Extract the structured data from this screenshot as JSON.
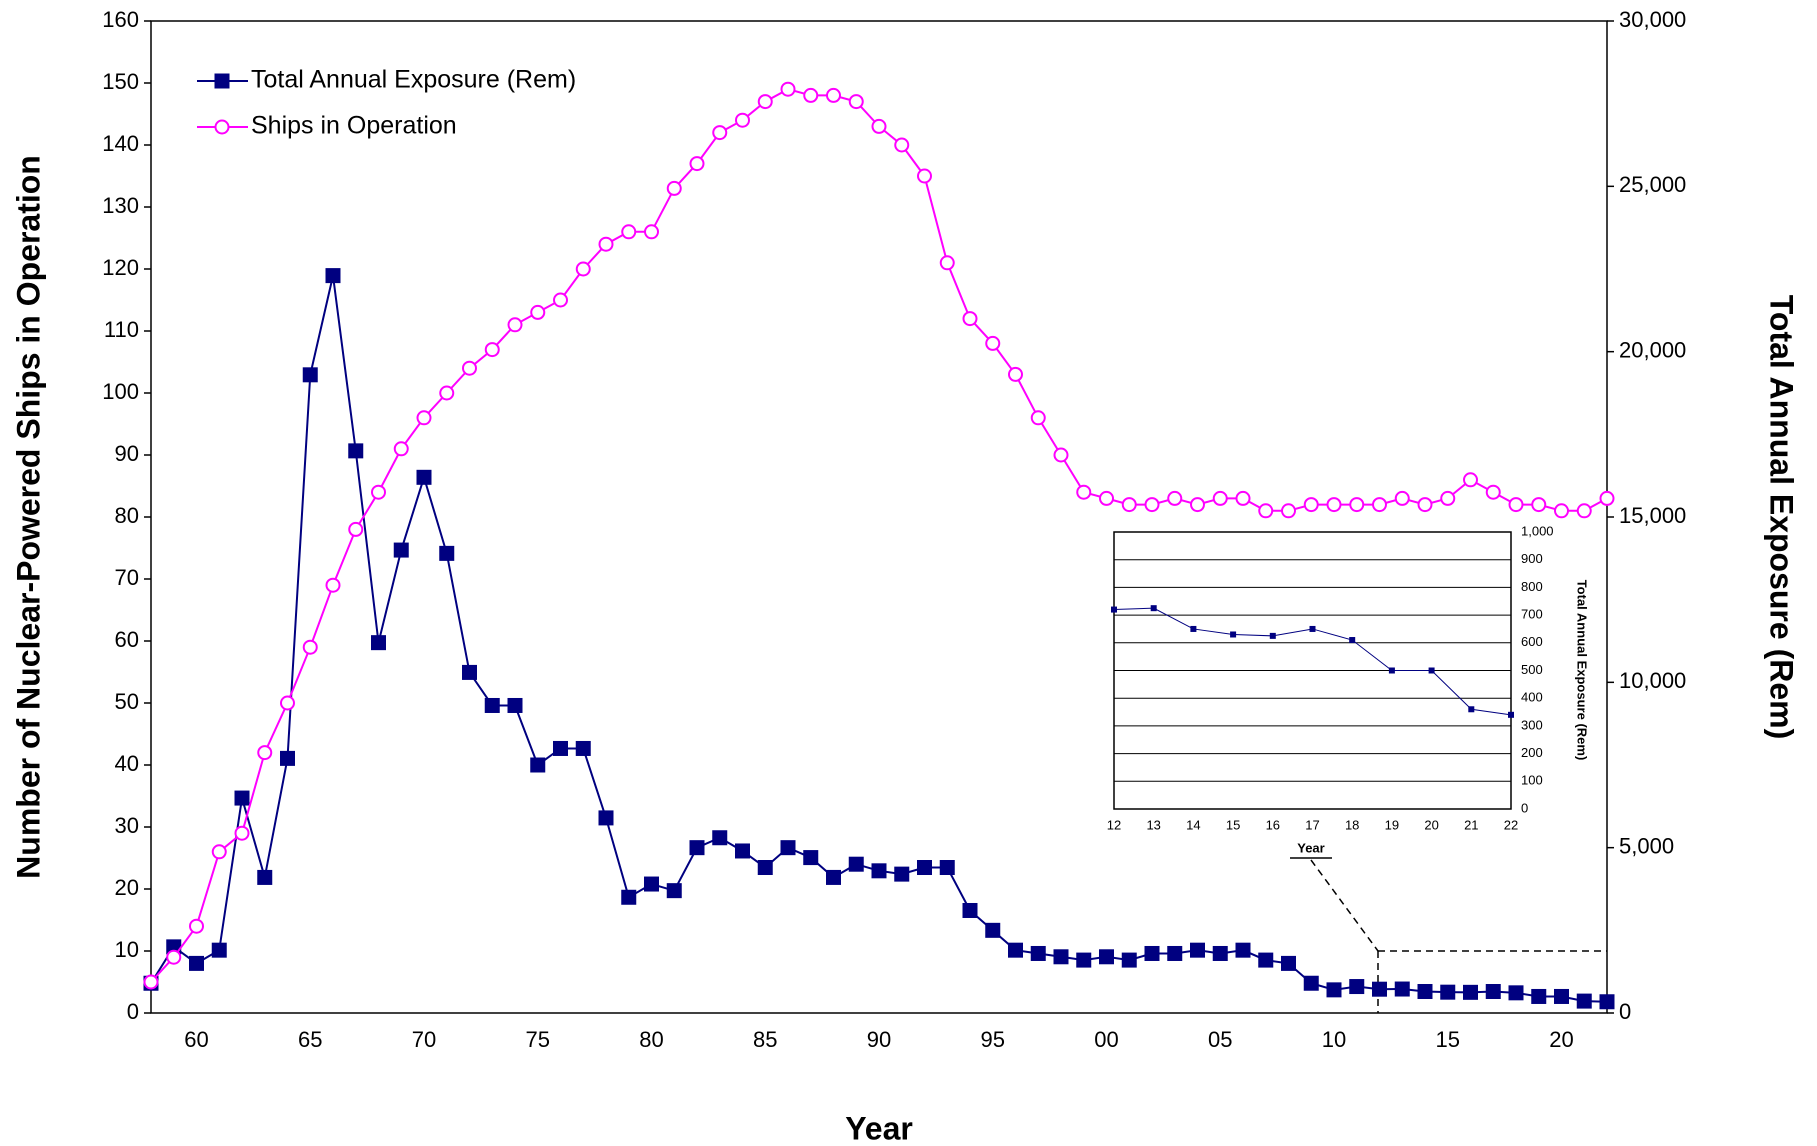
{
  "chart_data": [
    {
      "type": "line",
      "xlabel": "Year",
      "ylabel": "Number of Nuclear-Powered Ships in Operation",
      "y2label": "Total Annual Exposure (Rem)",
      "categories": [
        null,
        null,
        "60",
        null,
        null,
        null,
        null,
        "65",
        null,
        null,
        null,
        null,
        "70",
        null,
        null,
        null,
        null,
        "75",
        null,
        null,
        null,
        null,
        "80",
        null,
        null,
        null,
        null,
        "85",
        null,
        null,
        null,
        null,
        "90",
        null,
        null,
        null,
        null,
        "95",
        null,
        null,
        null,
        null,
        "00",
        null,
        null,
        null,
        null,
        "05",
        null,
        null,
        null,
        null,
        "10",
        null,
        null,
        null,
        null,
        "15",
        null,
        null,
        null,
        null,
        "20",
        null,
        null
      ],
      "ylim": [
        0,
        160
      ],
      "yticks": [
        0,
        10,
        20,
        30,
        40,
        50,
        60,
        70,
        80,
        90,
        100,
        110,
        120,
        130,
        140,
        150,
        160
      ],
      "y2lim": [
        0,
        30000
      ],
      "y2ticks": [
        0,
        {
          "value": 5000,
          "label": "5,000"
        },
        {
          "value": 10000,
          "label": "10,000"
        },
        {
          "value": 15000,
          "label": "15,000"
        },
        {
          "value": 20000,
          "label": "20,000"
        },
        {
          "value": 25000,
          "label": "25,000"
        },
        {
          "value": 30000,
          "label": "30,000"
        }
      ],
      "legend": "upper left",
      "grid": false,
      "series": [
        {
          "name": "Total Annual Exposure (Rem)",
          "color": "#000080",
          "marker": "square",
          "axis": "y2",
          "values": [
            900,
            2000,
            1500,
            1900,
            6500,
            4100,
            7700,
            19300,
            22300,
            17000,
            11200,
            14000,
            16200,
            13900,
            10300,
            9300,
            9300,
            7500,
            8000,
            8000,
            5900,
            3500,
            3900,
            3700,
            5000,
            5300,
            4900,
            4400,
            5000,
            4700,
            4100,
            4500,
            4300,
            4200,
            4400,
            4400,
            3100,
            2500,
            1900,
            1800,
            1700,
            1600,
            1700,
            1600,
            1800,
            1800,
            1900,
            1800,
            1900,
            1600,
            1500,
            900,
            700,
            800,
            720,
            725,
            650,
            630,
            625,
            650,
            610,
            500,
            500,
            360,
            340
          ]
        },
        {
          "name": "Ships in Operation",
          "color": "#ff00ff",
          "marker": "circle",
          "axis": "y",
          "values": [
            5,
            9,
            14,
            26,
            29,
            42,
            50,
            59,
            69,
            78,
            84,
            91,
            96,
            100,
            104,
            107,
            111,
            113,
            115,
            120,
            124,
            126,
            126,
            133,
            137,
            142,
            144,
            147,
            149,
            148,
            148,
            147,
            143,
            140,
            135,
            121,
            112,
            108,
            103,
            96,
            90,
            84,
            83,
            82,
            82,
            83,
            82,
            83,
            83,
            81,
            81,
            82,
            82,
            82,
            82,
            83,
            82,
            83,
            86,
            84,
            82,
            82,
            81,
            81,
            83
          ]
        }
      ]
    },
    {
      "type": "line",
      "xlabel": "Year",
      "ylabel": "Total Annual Exposure (Rem)",
      "yaxis_position": "right",
      "categories": [
        "12",
        "13",
        "14",
        "15",
        "16",
        "17",
        "18",
        "19",
        "20",
        "21",
        "22"
      ],
      "ylim": [
        0,
        1000
      ],
      "yticks": [
        0,
        100,
        200,
        300,
        400,
        500,
        600,
        700,
        800,
        900,
        {
          "value": 1000,
          "label": "1,000"
        }
      ],
      "grid": true,
      "color": "#000080",
      "marker": "square",
      "values": [
        720,
        725,
        650,
        630,
        625,
        650,
        610,
        500,
        500,
        360,
        340
      ]
    }
  ]
}
